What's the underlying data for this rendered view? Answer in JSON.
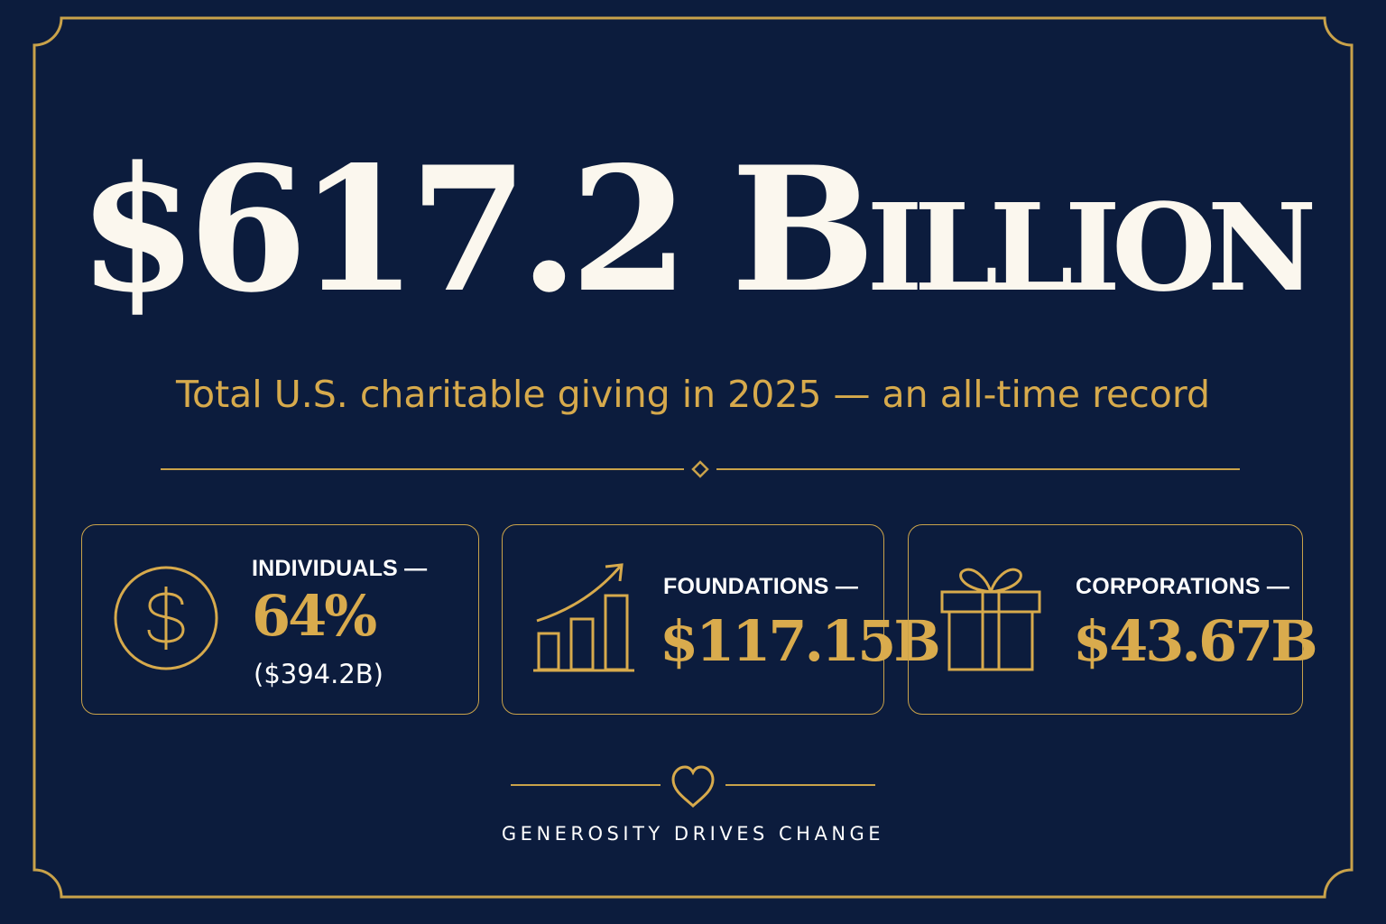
{
  "headline": {
    "amount": "$617.2",
    "unit": "Billion"
  },
  "subtitle": "Total U.S. charitable giving in 2025 — an all-time record",
  "cards": [
    {
      "icon": "dollar-circle-icon",
      "label": "INDIVIDUALS —",
      "value": "64%",
      "sub": "($394.2B)"
    },
    {
      "icon": "growth-chart-icon",
      "label": "FOUNDATIONS —",
      "value": "$117.15B"
    },
    {
      "icon": "gift-icon",
      "label": "CORPORATIONS —",
      "value": "$43.67B"
    }
  ],
  "footer": {
    "icon": "heart-icon",
    "tagline": "GENEROSITY DRIVES CHANGE"
  },
  "colors": {
    "background": "#0c1c3d",
    "gold": "#d7aa4c",
    "cream": "#fbf7ee",
    "white": "#ffffff"
  }
}
